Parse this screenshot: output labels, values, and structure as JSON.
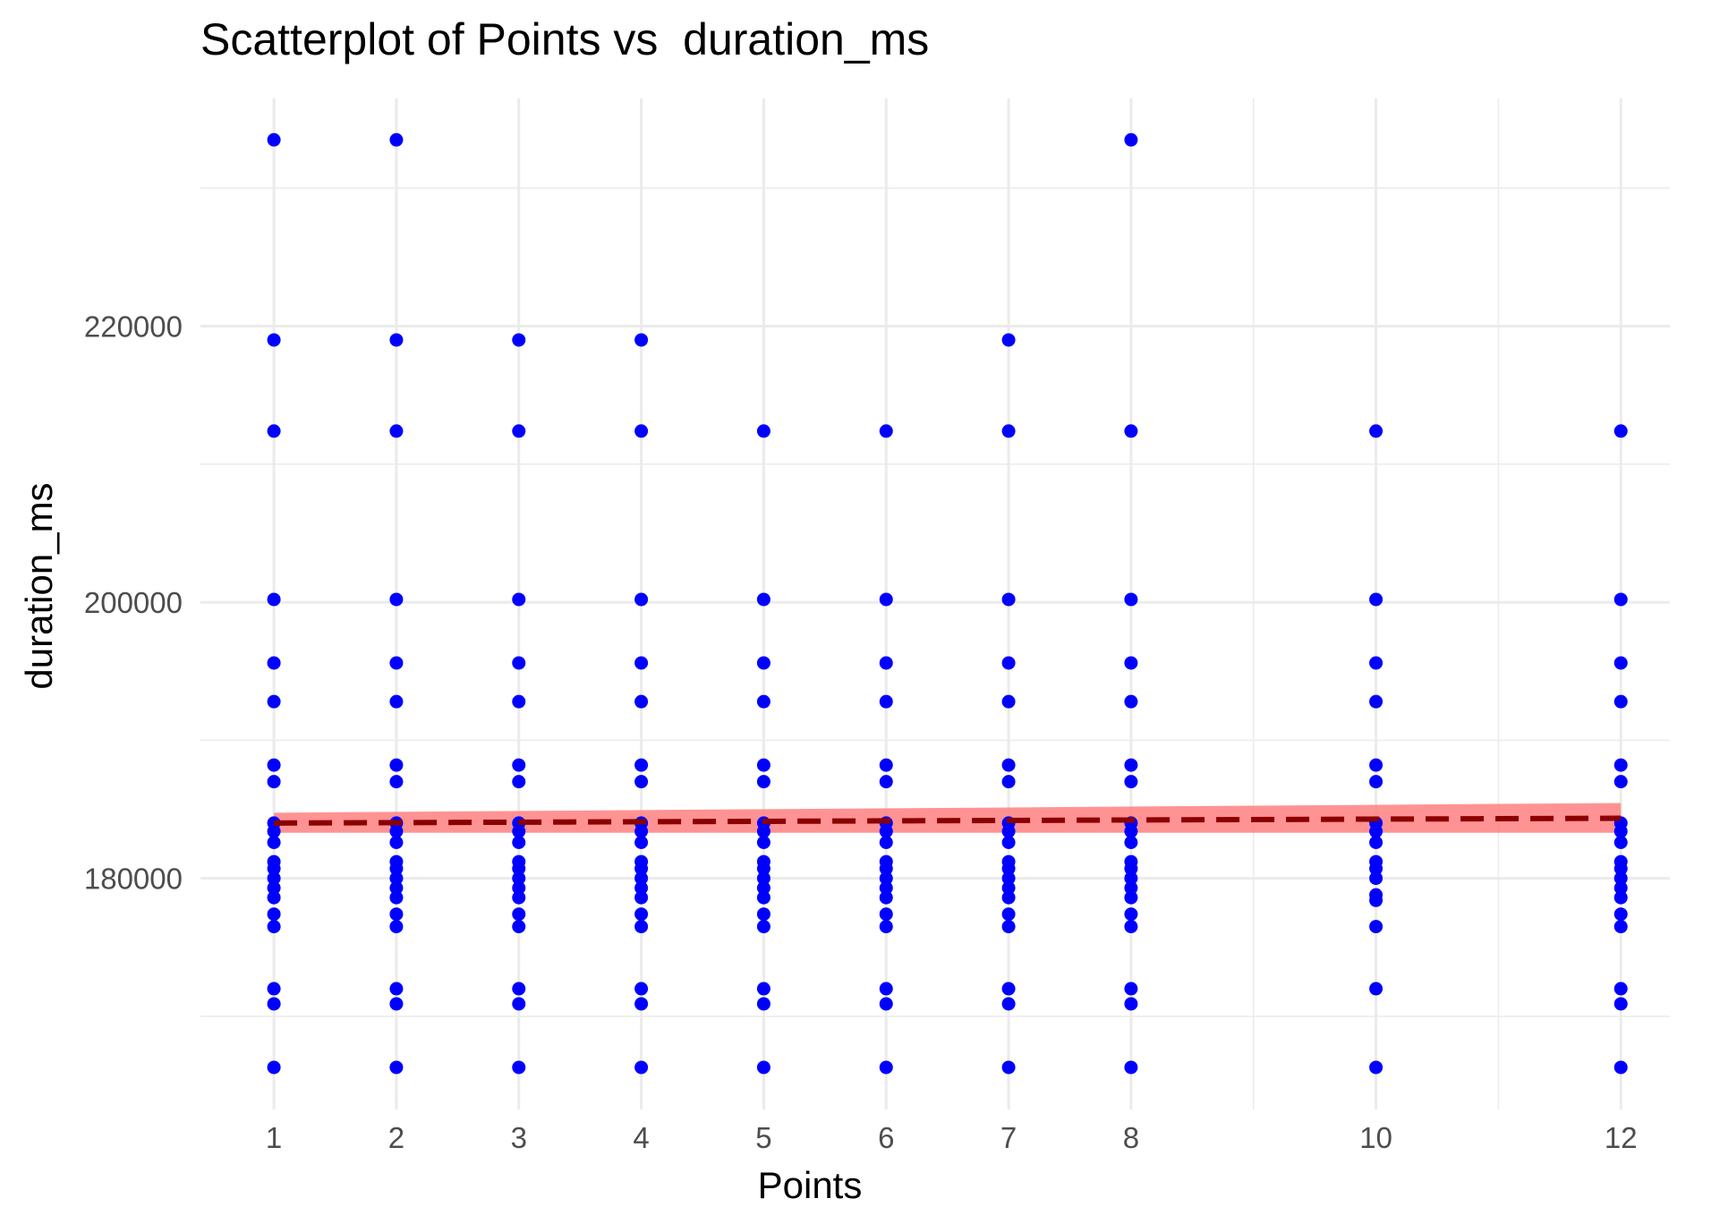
{
  "chart_data": {
    "type": "scatter",
    "title": "Scatterplot of Points vs  duration_ms",
    "xlabel": "Points",
    "ylabel": "duration_ms",
    "x_ticks": [
      1,
      2,
      3,
      4,
      5,
      6,
      7,
      8,
      10,
      12
    ],
    "x_tick_labels": [
      "1",
      "2",
      "3",
      "4",
      "5",
      "6",
      "7",
      "8",
      "10",
      "12"
    ],
    "y_ticks": [
      180000,
      200000,
      220000
    ],
    "y_tick_labels": [
      "180000",
      "200000",
      "220000"
    ],
    "xlim": [
      0.4,
      12.4
    ],
    "ylim": [
      163250,
      236500
    ],
    "grid": true,
    "legend": "none",
    "colors": {
      "points": "#0000ff",
      "trend_line": "#8b0000",
      "confidence_band": "#ff8080",
      "grid": "#ebebeb"
    },
    "series": [
      {
        "values": [
          {
            "x": 1,
            "y": 233500
          },
          {
            "x": 1,
            "y": 219000
          },
          {
            "x": 1,
            "y": 212400
          },
          {
            "x": 1,
            "y": 200200
          },
          {
            "x": 1,
            "y": 195600
          },
          {
            "x": 1,
            "y": 192800
          },
          {
            "x": 1,
            "y": 188200
          },
          {
            "x": 1,
            "y": 187000
          },
          {
            "x": 1,
            "y": 184000
          },
          {
            "x": 1,
            "y": 183400
          },
          {
            "x": 1,
            "y": 182600
          },
          {
            "x": 1,
            "y": 181200
          },
          {
            "x": 1,
            "y": 180700
          },
          {
            "x": 1,
            "y": 180000
          },
          {
            "x": 1,
            "y": 179300
          },
          {
            "x": 1,
            "y": 178600
          },
          {
            "x": 1,
            "y": 177400
          },
          {
            "x": 1,
            "y": 176500
          },
          {
            "x": 1,
            "y": 172000
          },
          {
            "x": 1,
            "y": 170900
          },
          {
            "x": 1,
            "y": 166300
          },
          {
            "x": 2,
            "y": 233500
          },
          {
            "x": 2,
            "y": 219000
          },
          {
            "x": 2,
            "y": 212400
          },
          {
            "x": 2,
            "y": 200200
          },
          {
            "x": 2,
            "y": 195600
          },
          {
            "x": 2,
            "y": 192800
          },
          {
            "x": 2,
            "y": 188200
          },
          {
            "x": 2,
            "y": 187000
          },
          {
            "x": 2,
            "y": 184000
          },
          {
            "x": 2,
            "y": 183400
          },
          {
            "x": 2,
            "y": 182600
          },
          {
            "x": 2,
            "y": 181200
          },
          {
            "x": 2,
            "y": 180700
          },
          {
            "x": 2,
            "y": 180000
          },
          {
            "x": 2,
            "y": 179300
          },
          {
            "x": 2,
            "y": 178600
          },
          {
            "x": 2,
            "y": 177400
          },
          {
            "x": 2,
            "y": 176500
          },
          {
            "x": 2,
            "y": 172000
          },
          {
            "x": 2,
            "y": 170900
          },
          {
            "x": 2,
            "y": 166300
          },
          {
            "x": 3,
            "y": 219000
          },
          {
            "x": 3,
            "y": 212400
          },
          {
            "x": 3,
            "y": 200200
          },
          {
            "x": 3,
            "y": 195600
          },
          {
            "x": 3,
            "y": 192800
          },
          {
            "x": 3,
            "y": 188200
          },
          {
            "x": 3,
            "y": 187000
          },
          {
            "x": 3,
            "y": 184000
          },
          {
            "x": 3,
            "y": 183400
          },
          {
            "x": 3,
            "y": 182600
          },
          {
            "x": 3,
            "y": 181200
          },
          {
            "x": 3,
            "y": 180700
          },
          {
            "x": 3,
            "y": 180000
          },
          {
            "x": 3,
            "y": 179300
          },
          {
            "x": 3,
            "y": 178600
          },
          {
            "x": 3,
            "y": 177400
          },
          {
            "x": 3,
            "y": 176500
          },
          {
            "x": 3,
            "y": 172000
          },
          {
            "x": 3,
            "y": 170900
          },
          {
            "x": 3,
            "y": 166300
          },
          {
            "x": 4,
            "y": 219000
          },
          {
            "x": 4,
            "y": 212400
          },
          {
            "x": 4,
            "y": 200200
          },
          {
            "x": 4,
            "y": 195600
          },
          {
            "x": 4,
            "y": 192800
          },
          {
            "x": 4,
            "y": 188200
          },
          {
            "x": 4,
            "y": 187000
          },
          {
            "x": 4,
            "y": 184000
          },
          {
            "x": 4,
            "y": 183400
          },
          {
            "x": 4,
            "y": 182600
          },
          {
            "x": 4,
            "y": 181200
          },
          {
            "x": 4,
            "y": 180700
          },
          {
            "x": 4,
            "y": 180000
          },
          {
            "x": 4,
            "y": 179300
          },
          {
            "x": 4,
            "y": 178600
          },
          {
            "x": 4,
            "y": 177400
          },
          {
            "x": 4,
            "y": 176500
          },
          {
            "x": 4,
            "y": 172000
          },
          {
            "x": 4,
            "y": 170900
          },
          {
            "x": 4,
            "y": 166300
          },
          {
            "x": 5,
            "y": 212400
          },
          {
            "x": 5,
            "y": 200200
          },
          {
            "x": 5,
            "y": 195600
          },
          {
            "x": 5,
            "y": 192800
          },
          {
            "x": 5,
            "y": 188200
          },
          {
            "x": 5,
            "y": 187000
          },
          {
            "x": 5,
            "y": 184000
          },
          {
            "x": 5,
            "y": 183400
          },
          {
            "x": 5,
            "y": 182600
          },
          {
            "x": 5,
            "y": 181200
          },
          {
            "x": 5,
            "y": 180700
          },
          {
            "x": 5,
            "y": 180000
          },
          {
            "x": 5,
            "y": 179300
          },
          {
            "x": 5,
            "y": 178600
          },
          {
            "x": 5,
            "y": 177400
          },
          {
            "x": 5,
            "y": 176500
          },
          {
            "x": 5,
            "y": 172000
          },
          {
            "x": 5,
            "y": 170900
          },
          {
            "x": 5,
            "y": 166300
          },
          {
            "x": 6,
            "y": 212400
          },
          {
            "x": 6,
            "y": 200200
          },
          {
            "x": 6,
            "y": 195600
          },
          {
            "x": 6,
            "y": 192800
          },
          {
            "x": 6,
            "y": 188200
          },
          {
            "x": 6,
            "y": 187000
          },
          {
            "x": 6,
            "y": 184000
          },
          {
            "x": 6,
            "y": 183400
          },
          {
            "x": 6,
            "y": 182600
          },
          {
            "x": 6,
            "y": 181200
          },
          {
            "x": 6,
            "y": 180700
          },
          {
            "x": 6,
            "y": 180000
          },
          {
            "x": 6,
            "y": 179300
          },
          {
            "x": 6,
            "y": 178600
          },
          {
            "x": 6,
            "y": 177400
          },
          {
            "x": 6,
            "y": 176500
          },
          {
            "x": 6,
            "y": 172000
          },
          {
            "x": 6,
            "y": 170900
          },
          {
            "x": 6,
            "y": 166300
          },
          {
            "x": 7,
            "y": 219000
          },
          {
            "x": 7,
            "y": 212400
          },
          {
            "x": 7,
            "y": 200200
          },
          {
            "x": 7,
            "y": 195600
          },
          {
            "x": 7,
            "y": 192800
          },
          {
            "x": 7,
            "y": 188200
          },
          {
            "x": 7,
            "y": 187000
          },
          {
            "x": 7,
            "y": 184000
          },
          {
            "x": 7,
            "y": 183400
          },
          {
            "x": 7,
            "y": 182600
          },
          {
            "x": 7,
            "y": 181200
          },
          {
            "x": 7,
            "y": 180700
          },
          {
            "x": 7,
            "y": 180000
          },
          {
            "x": 7,
            "y": 179300
          },
          {
            "x": 7,
            "y": 178600
          },
          {
            "x": 7,
            "y": 177400
          },
          {
            "x": 7,
            "y": 176500
          },
          {
            "x": 7,
            "y": 172000
          },
          {
            "x": 7,
            "y": 170900
          },
          {
            "x": 7,
            "y": 166300
          },
          {
            "x": 8,
            "y": 233500
          },
          {
            "x": 8,
            "y": 212400
          },
          {
            "x": 8,
            "y": 200200
          },
          {
            "x": 8,
            "y": 195600
          },
          {
            "x": 8,
            "y": 192800
          },
          {
            "x": 8,
            "y": 188200
          },
          {
            "x": 8,
            "y": 187000
          },
          {
            "x": 8,
            "y": 184000
          },
          {
            "x": 8,
            "y": 183400
          },
          {
            "x": 8,
            "y": 182600
          },
          {
            "x": 8,
            "y": 181200
          },
          {
            "x": 8,
            "y": 180700
          },
          {
            "x": 8,
            "y": 180000
          },
          {
            "x": 8,
            "y": 179300
          },
          {
            "x": 8,
            "y": 178600
          },
          {
            "x": 8,
            "y": 177400
          },
          {
            "x": 8,
            "y": 176500
          },
          {
            "x": 8,
            "y": 172000
          },
          {
            "x": 8,
            "y": 170900
          },
          {
            "x": 8,
            "y": 166300
          },
          {
            "x": 10,
            "y": 212400
          },
          {
            "x": 10,
            "y": 200200
          },
          {
            "x": 10,
            "y": 195600
          },
          {
            "x": 10,
            "y": 192800
          },
          {
            "x": 10,
            "y": 188200
          },
          {
            "x": 10,
            "y": 187000
          },
          {
            "x": 10,
            "y": 184000
          },
          {
            "x": 10,
            "y": 183400
          },
          {
            "x": 10,
            "y": 182600
          },
          {
            "x": 10,
            "y": 181200
          },
          {
            "x": 10,
            "y": 180700
          },
          {
            "x": 10,
            "y": 180000
          },
          {
            "x": 10,
            "y": 178800
          },
          {
            "x": 10,
            "y": 178400
          },
          {
            "x": 10,
            "y": 176500
          },
          {
            "x": 10,
            "y": 172000
          },
          {
            "x": 10,
            "y": 166300
          },
          {
            "x": 12,
            "y": 212400
          },
          {
            "x": 12,
            "y": 200200
          },
          {
            "x": 12,
            "y": 195600
          },
          {
            "x": 12,
            "y": 192800
          },
          {
            "x": 12,
            "y": 188200
          },
          {
            "x": 12,
            "y": 187000
          },
          {
            "x": 12,
            "y": 184000
          },
          {
            "x": 12,
            "y": 183400
          },
          {
            "x": 12,
            "y": 182600
          },
          {
            "x": 12,
            "y": 181200
          },
          {
            "x": 12,
            "y": 180700
          },
          {
            "x": 12,
            "y": 180000
          },
          {
            "x": 12,
            "y": 179300
          },
          {
            "x": 12,
            "y": 178600
          },
          {
            "x": 12,
            "y": 177400
          },
          {
            "x": 12,
            "y": 176500
          },
          {
            "x": 12,
            "y": 172000
          },
          {
            "x": 12,
            "y": 170900
          },
          {
            "x": 12,
            "y": 166300
          }
        ]
      }
    ],
    "trend_line": {
      "style": "dashed",
      "x": [
        1,
        12
      ],
      "y": [
        184000,
        184350
      ]
    },
    "confidence_band": {
      "x": [
        1,
        12
      ],
      "lower": [
        183300,
        183300
      ],
      "upper": [
        184750,
        185450
      ]
    }
  }
}
